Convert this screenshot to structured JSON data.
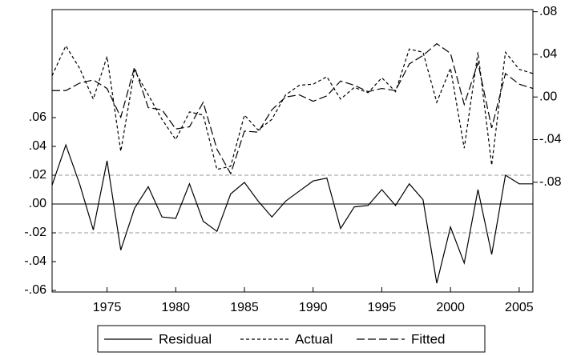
{
  "chart_data": {
    "type": "line",
    "x": [
      1971,
      1972,
      1973,
      1974,
      1975,
      1976,
      1977,
      1978,
      1979,
      1980,
      1981,
      1982,
      1983,
      1984,
      1985,
      1986,
      1987,
      1988,
      1989,
      1990,
      1991,
      1992,
      1993,
      1994,
      1995,
      1996,
      1997,
      1998,
      1999,
      2000,
      2001,
      2002,
      2003,
      2004,
      2005,
      2006
    ],
    "xlim": [
      1971,
      2006
    ],
    "xticks": [
      1975,
      1980,
      1985,
      1990,
      1995,
      2000,
      2005
    ],
    "ylim": [
      -0.0611,
      0.135
    ],
    "yticks": [
      {
        "value": -0.06,
        "label": "-.06"
      },
      {
        "value": -0.04,
        "label": "-.04"
      },
      {
        "value": -0.02,
        "label": "-.02"
      },
      {
        "value": 0,
        "label": ".00"
      },
      {
        "value": 0.02,
        "label": ".02"
      },
      {
        "value": 0.04,
        "label": ".04"
      },
      {
        "value": 0.06,
        "label": ".06"
      }
    ],
    "y2lim": [
      -0.183,
      0.082
    ],
    "y2ticks": [
      {
        "value": -0.08,
        "label": "-.08"
      },
      {
        "value": -0.04,
        "label": "-.04"
      },
      {
        "value": 0,
        "label": ".00"
      },
      {
        "value": 0.04,
        "label": ".04"
      },
      {
        "value": 0.08,
        "label": ".08"
      }
    ],
    "zero_line": 0,
    "band_lines": [
      -0.02,
      0.02
    ],
    "legend": "bottom",
    "series": [
      {
        "name": "Residual",
        "color": "#000000",
        "style": "solid",
        "axis": "y",
        "values": [
          0.013,
          0.041,
          0.014,
          -0.018,
          0.03,
          -0.032,
          -0.003,
          0.012,
          -0.009,
          -0.01,
          0.014,
          -0.012,
          -0.019,
          0.007,
          0.015,
          0.002,
          -0.009,
          0.002,
          0.009,
          0.016,
          0.018,
          -0.017,
          -0.002,
          -0.001,
          0.01,
          -0.001,
          0.014,
          0.003,
          -0.055,
          -0.016,
          -0.041,
          0.01,
          -0.035,
          0.02,
          0.014,
          0.014
        ]
      },
      {
        "name": "Actual",
        "color": "#000000",
        "style": "short-dash",
        "axis": "y2",
        "values": [
          0.02,
          0.048,
          0.027,
          -0.002,
          0.038,
          -0.051,
          0.025,
          0.002,
          -0.021,
          -0.04,
          -0.014,
          -0.017,
          -0.068,
          -0.065,
          -0.017,
          -0.031,
          -0.021,
          0.002,
          0.011,
          0.012,
          0.019,
          -0.002,
          0.009,
          0.004,
          0.018,
          0.005,
          0.045,
          0.042,
          -0.005,
          0.027,
          -0.048,
          0.042,
          -0.064,
          0.042,
          0.026,
          0.022
        ]
      },
      {
        "name": "Fitted",
        "color": "#000000",
        "style": "long-dash",
        "axis": "y2",
        "values": [
          0.006,
          0.006,
          0.013,
          0.016,
          0.008,
          -0.019,
          0.028,
          -0.01,
          -0.012,
          -0.03,
          -0.028,
          -0.005,
          -0.049,
          -0.072,
          -0.032,
          -0.033,
          -0.012,
          0.0,
          0.002,
          -0.004,
          0.001,
          0.015,
          0.011,
          0.005,
          0.008,
          0.006,
          0.031,
          0.039,
          0.05,
          0.041,
          -0.007,
          0.032,
          -0.029,
          0.022,
          0.012,
          0.008
        ]
      }
    ]
  }
}
